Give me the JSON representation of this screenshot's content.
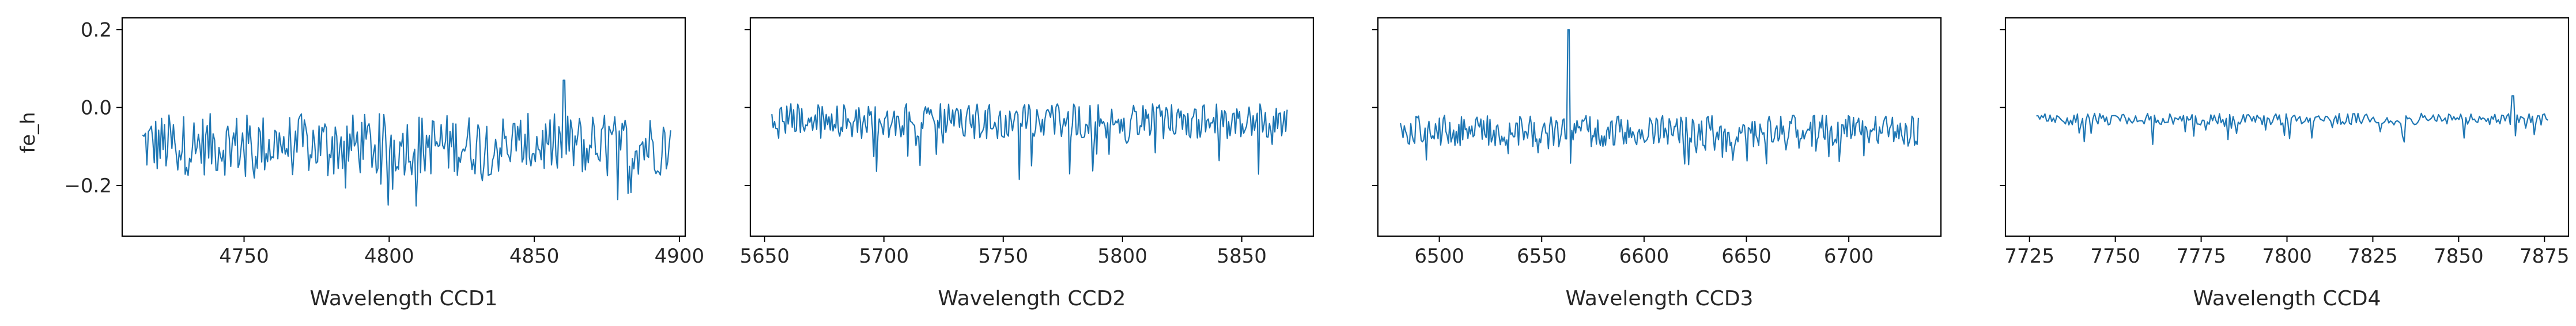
{
  "figure": {
    "ylabel": "fe_h",
    "line_color": "#1f77b4",
    "yticks": [
      -0.2,
      0.0,
      0.2
    ],
    "ylim": [
      -0.33,
      0.23
    ]
  },
  "chart_data": [
    {
      "type": "line",
      "xlabel": "Wavelength CCD1",
      "xlim": [
        4708,
        4902
      ],
      "xticks": [
        4750,
        4800,
        4850,
        4900
      ],
      "x_range": [
        4715,
        4897
      ],
      "points": 360,
      "baseline": -0.095,
      "noise": 0.08,
      "absorption_depth": 0.1,
      "spikes": [
        {
          "x": 4860,
          "y": 0.07
        }
      ],
      "series": [
        {
          "values_summary": "noisy spectrum between about -0.30 and 0.07"
        }
      ]
    },
    {
      "type": "line",
      "xlabel": "Wavelength CCD2",
      "xlim": [
        5644,
        5880
      ],
      "xticks": [
        5650,
        5700,
        5750,
        5800,
        5850
      ],
      "x_range": [
        5653,
        5869
      ],
      "points": 380,
      "baseline": -0.035,
      "noise": 0.045,
      "absorption_depth": 0.12,
      "spikes": [],
      "series": [
        {
          "values_summary": "noisy spectrum between about -0.25 and 0.02"
        }
      ]
    },
    {
      "type": "line",
      "xlabel": "Wavelength CCD3",
      "xlim": [
        6470,
        6745
      ],
      "xticks": [
        6500,
        6550,
        6600,
        6650,
        6700
      ],
      "x_range": [
        6481,
        6734
      ],
      "points": 400,
      "baseline": -0.06,
      "noise": 0.04,
      "absorption_depth": 0.09,
      "spikes": [
        {
          "x": 6563,
          "y": 0.2
        }
      ],
      "series": [
        {
          "values_summary": "noisy spectrum between about -0.22 and 0.20 with emission spike near 6563"
        }
      ]
    },
    {
      "type": "line",
      "xlabel": "Wavelength CCD4",
      "xlim": [
        7718,
        7882
      ],
      "xticks": [
        7725,
        7750,
        7775,
        7800,
        7825,
        7850,
        7875
      ],
      "x_range": [
        7727,
        7876
      ],
      "points": 300,
      "baseline": -0.03,
      "noise": 0.015,
      "absorption_depth": 0.06,
      "spikes": [
        {
          "x": 7866,
          "y": 0.03
        }
      ],
      "series": [
        {
          "values_summary": "smoother spectrum between about -0.18 and 0.03"
        }
      ]
    }
  ]
}
